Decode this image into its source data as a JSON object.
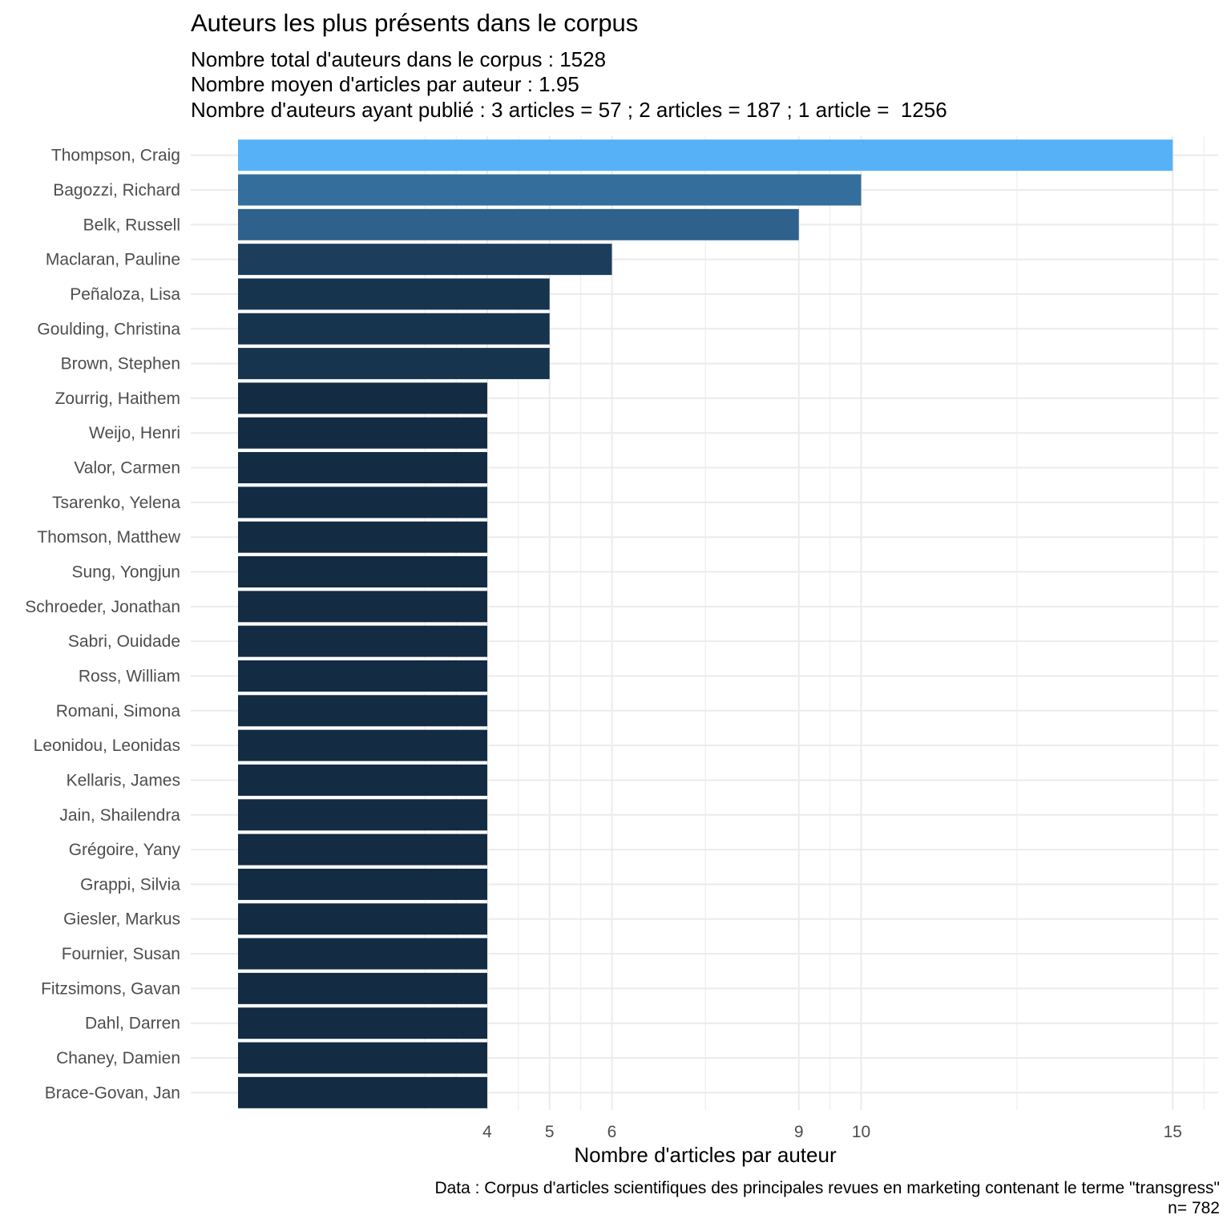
{
  "chart_data": {
    "type": "bar",
    "orientation": "horizontal",
    "title": "Auteurs les plus présents dans le corpus",
    "subtitle_lines": [
      "Nombre total d'auteurs dans le corpus : 1528",
      "Nombre moyen d'articles par auteur : 1.95",
      "Nombre d'auteurs ayant publié : 3 articles = 57 ; 2 articles = 187 ; 1 article =  1256"
    ],
    "xlabel": "Nombre d'articles par auteur",
    "ylabel": "",
    "caption_lines": [
      "Data : Corpus d'articles scientifiques des principales revues en marketing contenant le terme \"transgress\"",
      "n= 782"
    ],
    "x_ticks": [
      4,
      5,
      6,
      9,
      10,
      15
    ],
    "x_minor": [
      3,
      3.5,
      4.5,
      5.5,
      7.5,
      9.5,
      12.5,
      15.5
    ],
    "xlim": [
      0,
      15.6
    ],
    "grid": true,
    "legend": "none",
    "categories": [
      "Thompson, Craig",
      "Bagozzi, Richard",
      "Belk, Russell",
      "Maclaran, Pauline",
      "Peñaloza, Lisa",
      "Goulding, Christina",
      "Brown, Stephen",
      "Zourrig, Haithem",
      "Weijo, Henri",
      "Valor, Carmen",
      "Tsarenko, Yelena",
      "Thomson, Matthew",
      "Sung, Yongjun",
      "Schroeder, Jonathan",
      "Sabri, Ouidade",
      "Ross, William",
      "Romani, Simona",
      "Leonidou, Leonidas",
      "Kellaris, James",
      "Jain, Shailendra",
      "Grégoire, Yany",
      "Grappi, Silvia",
      "Giesler, Markus",
      "Fournier, Susan",
      "Fitzsimons, Gavan",
      "Dahl, Darren",
      "Chaney, Damien",
      "Brace-Govan, Jan"
    ],
    "values": [
      15,
      10,
      9,
      6,
      5,
      5,
      5,
      4,
      4,
      4,
      4,
      4,
      4,
      4,
      4,
      4,
      4,
      4,
      4,
      4,
      4,
      4,
      4,
      4,
      4,
      4,
      4,
      4
    ],
    "color_scale": {
      "low": "#132B43",
      "high": "#56B1F7"
    }
  }
}
